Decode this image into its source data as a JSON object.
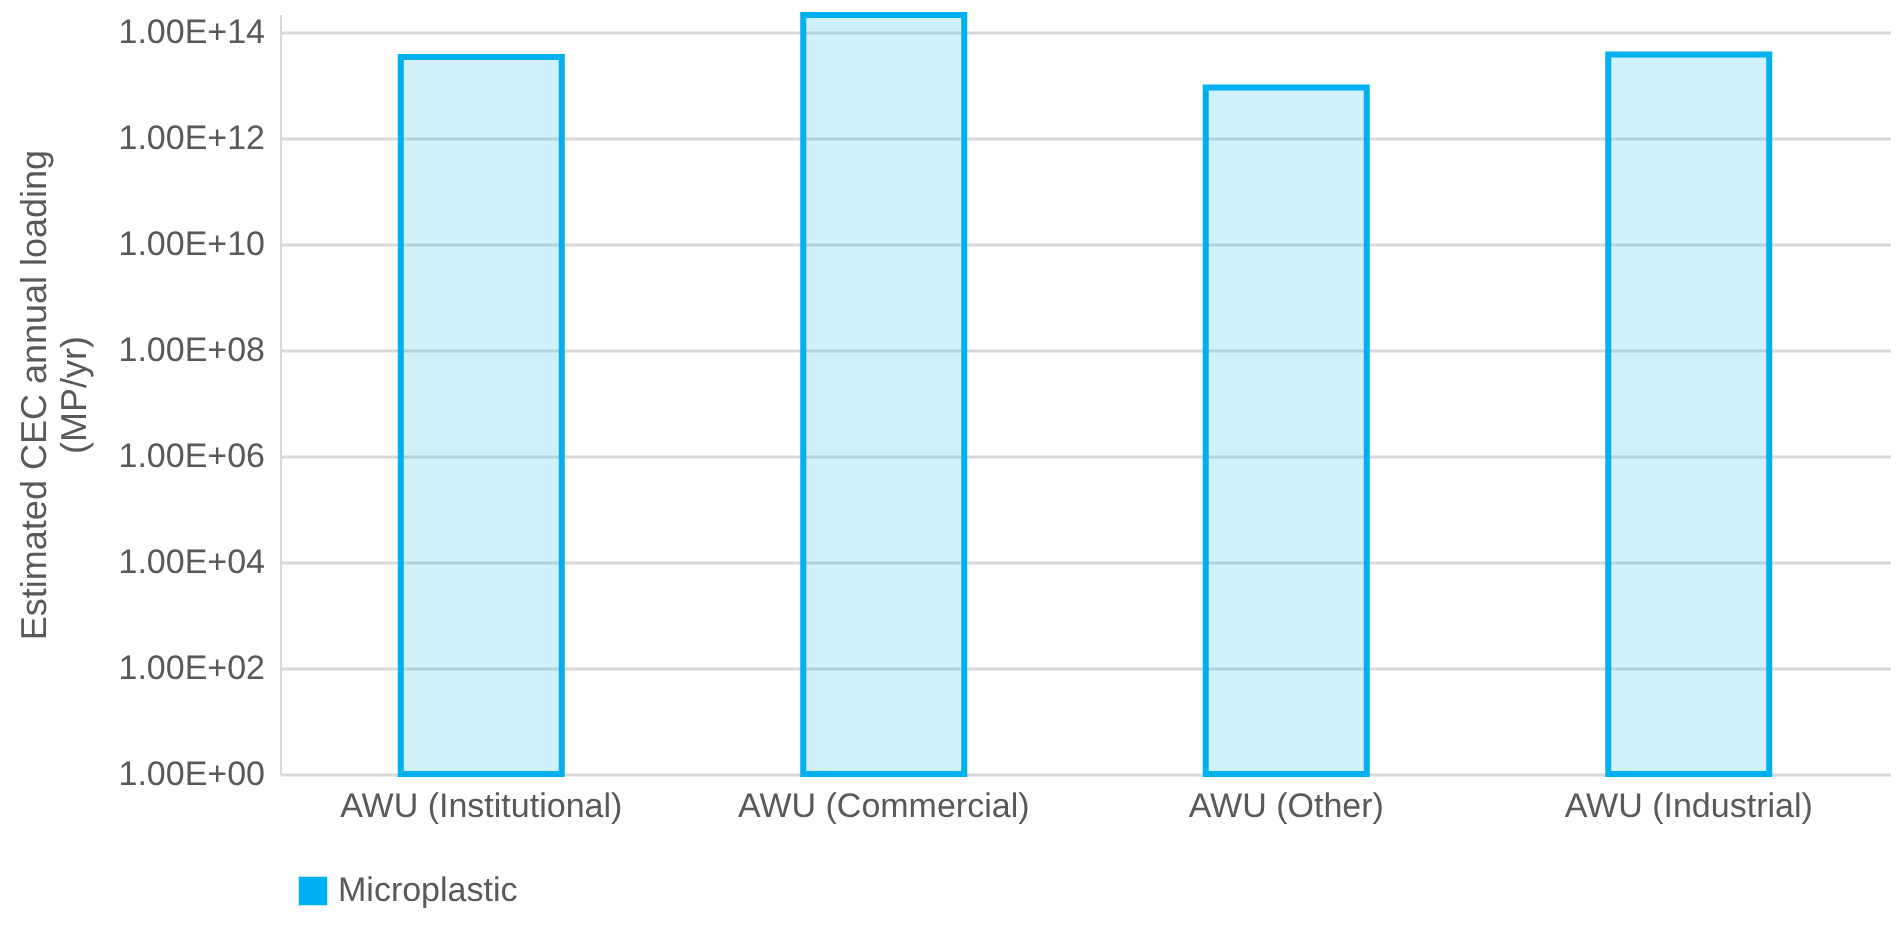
{
  "chart_data": {
    "type": "bar",
    "ylabel": "Estimated CEC annual loading (MP/yr)",
    "categories": [
      "AWU (Institutional)",
      "AWU (Commercial)",
      "AWU (Other)",
      "AWU (Industrial)"
    ],
    "series": [
      {
        "name": "Microplastic",
        "color": "#00b0f0",
        "values": [
          34000000000000.0,
          210000000000000.0,
          9000000000000.0,
          38000000000000.0
        ]
      }
    ],
    "log": "y",
    "ylim": [
      1,
      220000000000000.0
    ],
    "yticks": [
      {
        "value": 1,
        "label": "1.00E+00"
      },
      {
        "value": 100,
        "label": "1.00E+02"
      },
      {
        "value": 10000,
        "label": "1.00E+04"
      },
      {
        "value": 1000000,
        "label": "1.00E+06"
      },
      {
        "value": 100000000,
        "label": "1.00E+08"
      },
      {
        "value": 10000000000,
        "label": "1.00E+10"
      },
      {
        "value": 1000000000000,
        "label": "1.00E+12"
      },
      {
        "value": 100000000000000,
        "label": "1.00E+14"
      }
    ],
    "grid": "y",
    "legend": "bottom"
  }
}
